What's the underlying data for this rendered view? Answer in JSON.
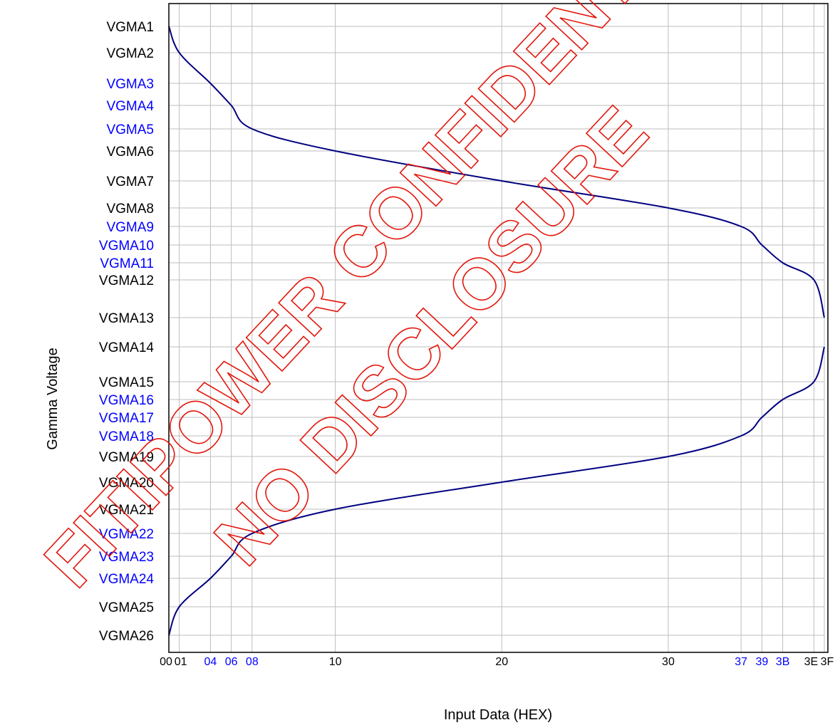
{
  "chart_data": {
    "type": "line",
    "title": "",
    "xlabel": "Input Data (HEX)",
    "ylabel": "Gamma Voltage",
    "grid": true,
    "x_ticks": [
      {
        "label": "00",
        "value": 0,
        "color": "#000000"
      },
      {
        "label": "01",
        "value": 1,
        "color": "#000000"
      },
      {
        "label": "04",
        "value": 4,
        "color": "#0000ff"
      },
      {
        "label": "06",
        "value": 6,
        "color": "#0000ff"
      },
      {
        "label": "08",
        "value": 8,
        "color": "#0000ff"
      },
      {
        "label": "10",
        "value": 16,
        "color": "#000000"
      },
      {
        "label": "20",
        "value": 32,
        "color": "#000000"
      },
      {
        "label": "30",
        "value": 48,
        "color": "#000000"
      },
      {
        "label": "37",
        "value": 55,
        "color": "#0000ff"
      },
      {
        "label": "39",
        "value": 57,
        "color": "#0000ff"
      },
      {
        "label": "3B",
        "value": 59,
        "color": "#0000ff"
      },
      {
        "label": "3E",
        "value": 62,
        "color": "#000000"
      },
      {
        "label": "3F",
        "value": 63,
        "color": "#000000"
      }
    ],
    "y_ticks": [
      {
        "label": "VGMA1",
        "color": "#000000"
      },
      {
        "label": "VGMA2",
        "color": "#000000"
      },
      {
        "label": "VGMA3",
        "color": "#0000ff"
      },
      {
        "label": "VGMA4",
        "color": "#0000ff"
      },
      {
        "label": "VGMA5",
        "color": "#0000ff"
      },
      {
        "label": "VGMA6",
        "color": "#000000"
      },
      {
        "label": "VGMA7",
        "color": "#000000"
      },
      {
        "label": "VGMA8",
        "color": "#000000"
      },
      {
        "label": "VGMA9",
        "color": "#0000ff"
      },
      {
        "label": "VGMA10",
        "color": "#0000ff"
      },
      {
        "label": "VGMA11",
        "color": "#0000ff"
      },
      {
        "label": "VGMA12",
        "color": "#000000"
      },
      {
        "label": "VGMA13",
        "color": "#000000"
      },
      {
        "label": "VGMA14",
        "color": "#000000"
      },
      {
        "label": "VGMA15",
        "color": "#000000"
      },
      {
        "label": "VGMA16",
        "color": "#0000ff"
      },
      {
        "label": "VGMA17",
        "color": "#0000ff"
      },
      {
        "label": "VGMA18",
        "color": "#0000ff"
      },
      {
        "label": "VGMA19",
        "color": "#000000"
      },
      {
        "label": "VGMA20",
        "color": "#000000"
      },
      {
        "label": "VGMA21",
        "color": "#000000"
      },
      {
        "label": "VGMA22",
        "color": "#0000ff"
      },
      {
        "label": "VGMA23",
        "color": "#0000ff"
      },
      {
        "label": "VGMA24",
        "color": "#0000ff"
      },
      {
        "label": "VGMA25",
        "color": "#000000"
      },
      {
        "label": "VGMA26",
        "color": "#000000"
      }
    ],
    "series": [
      {
        "color": "#000080",
        "points": [
          {
            "x": 0,
            "y": "VGMA1"
          },
          {
            "x": 1,
            "y": "VGMA2"
          },
          {
            "x": 4,
            "y": "VGMA3"
          },
          {
            "x": 6,
            "y": "VGMA4"
          },
          {
            "x": 8,
            "y": "VGMA5"
          },
          {
            "x": 16,
            "y": "VGMA6"
          },
          {
            "x": 32,
            "y": "VGMA7"
          },
          {
            "x": 48,
            "y": "VGMA8"
          },
          {
            "x": 55,
            "y": "VGMA9"
          },
          {
            "x": 57,
            "y": "VGMA10"
          },
          {
            "x": 59,
            "y": "VGMA11"
          },
          {
            "x": 62,
            "y": "VGMA12"
          },
          {
            "x": 63,
            "y": "VGMA13"
          }
        ]
      },
      {
        "color": "#000080",
        "points": [
          {
            "x": 63,
            "y": "VGMA14"
          },
          {
            "x": 62,
            "y": "VGMA15"
          },
          {
            "x": 59,
            "y": "VGMA16"
          },
          {
            "x": 57,
            "y": "VGMA17"
          },
          {
            "x": 55,
            "y": "VGMA18"
          },
          {
            "x": 48,
            "y": "VGMA19"
          },
          {
            "x": 32,
            "y": "VGMA20"
          },
          {
            "x": 16,
            "y": "VGMA21"
          },
          {
            "x": 8,
            "y": "VGMA22"
          },
          {
            "x": 6,
            "y": "VGMA23"
          },
          {
            "x": 4,
            "y": "VGMA24"
          },
          {
            "x": 1,
            "y": "VGMA25"
          },
          {
            "x": 0,
            "y": "VGMA26"
          }
        ]
      }
    ]
  },
  "watermark": {
    "lines": [
      "FITIPOWER CONFIDENTIAL",
      "NO DISCLOSURE"
    ],
    "color": "#e3170d"
  }
}
